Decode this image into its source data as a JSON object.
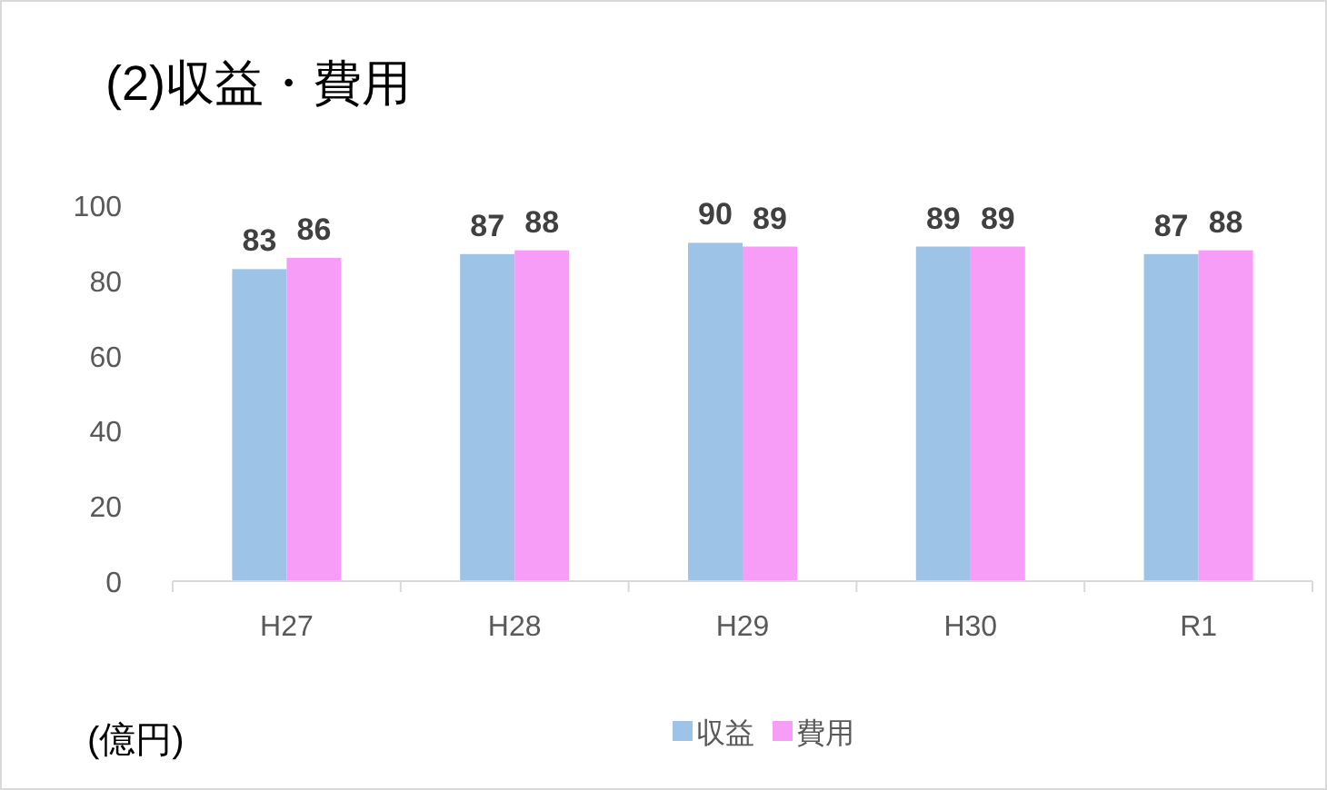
{
  "chart_data": {
    "type": "bar",
    "title": "(2)収益・費用",
    "categories": [
      "H27",
      "H28",
      "H29",
      "H30",
      "R1"
    ],
    "series": [
      {
        "name": "収益",
        "color": "#9dc3e6",
        "values": [
          83,
          87,
          90,
          89,
          87
        ]
      },
      {
        "name": "費用",
        "color": "#f79cf7",
        "values": [
          86,
          88,
          89,
          89,
          88
        ]
      }
    ],
    "ylim": [
      0,
      100
    ],
    "yticks": [
      0,
      20,
      40,
      60,
      80,
      100
    ],
    "grid": false,
    "legend": "bottom",
    "data_labels": true,
    "annotations": [
      "(億円)"
    ]
  }
}
